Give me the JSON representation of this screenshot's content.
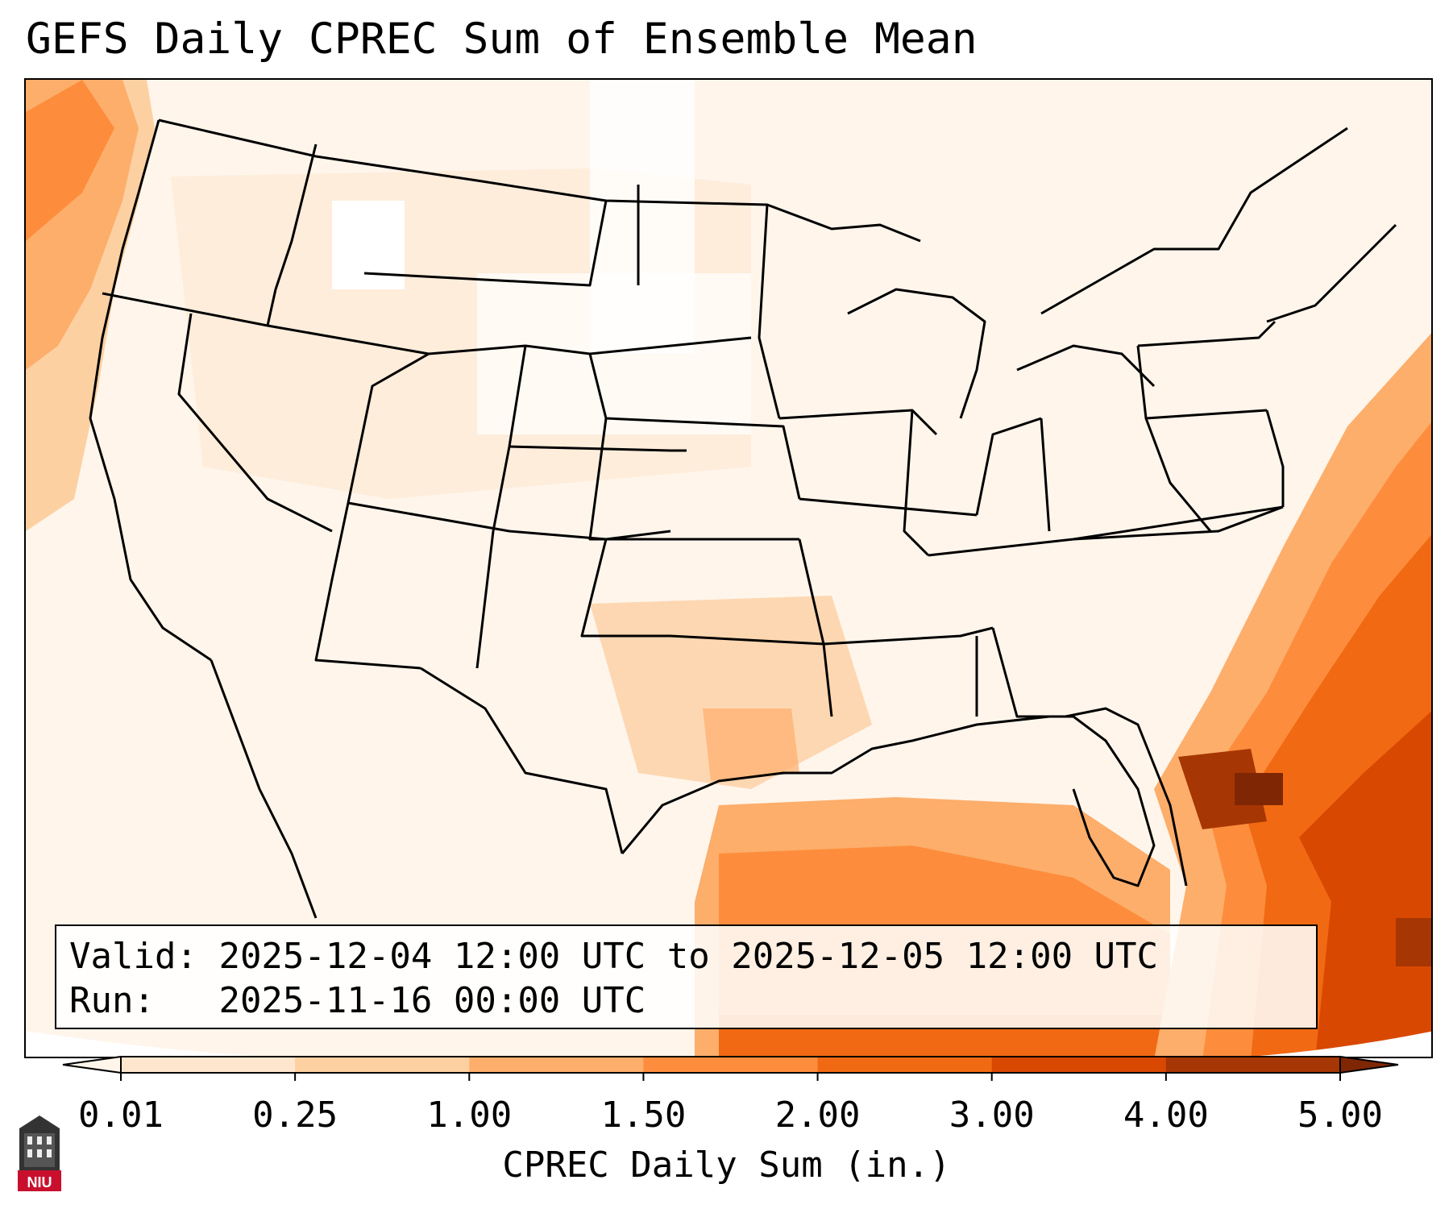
{
  "title": "GEFS Daily CPREC Sum of Ensemble Mean",
  "info": {
    "valid_label": "Valid:",
    "valid_value": "2025-12-04 12:00 UTC to 2025-12-05 12:00 UTC",
    "run_label": "Run:",
    "run_value": "2025-11-16 00:00 UTC"
  },
  "colorbar": {
    "label": "CPREC Daily Sum (in.)",
    "ticks": [
      "0.01",
      "0.25",
      "1.00",
      "1.50",
      "2.00",
      "3.00",
      "4.00",
      "5.00"
    ],
    "colors": [
      "#fff5eb",
      "#fee6ce",
      "#fdd0a2",
      "#fdae6b",
      "#fd8d3c",
      "#f16913",
      "#d94801",
      "#a63603",
      "#7f2704"
    ]
  },
  "logo": {
    "text": "NIU",
    "color": "#c8102e"
  },
  "colors": {
    "outline": "#000000",
    "background": "#ffffff"
  }
}
